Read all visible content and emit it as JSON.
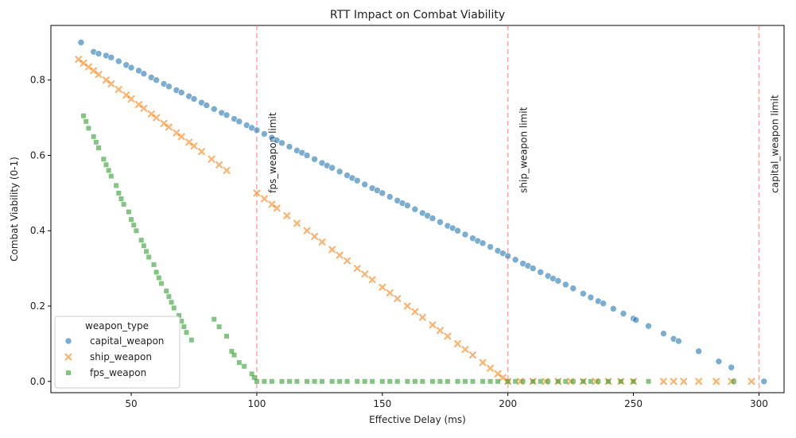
{
  "chart_data": {
    "type": "scatter",
    "title": "RTT Impact on Combat Viability",
    "xlabel": "Effective Delay (ms)",
    "ylabel": "Combat Viability (0-1)",
    "xlim": [
      18,
      310
    ],
    "ylim": [
      -0.03,
      0.945
    ],
    "x_ticks": [
      50,
      100,
      150,
      200,
      250,
      300
    ],
    "y_ticks": [
      0.0,
      0.2,
      0.4,
      0.6,
      0.8
    ],
    "grid": false,
    "legend": {
      "title": "weapon_type",
      "placement": "lower-left"
    },
    "vlines": [
      {
        "x": 100,
        "label": "fps_weapon limit"
      },
      {
        "x": 200,
        "label": "ship_weapon limit"
      },
      {
        "x": 300,
        "label": "capital_weapon limit"
      }
    ],
    "series": [
      {
        "name": "capital_weapon",
        "marker": "circle",
        "color": "#1f77b4",
        "x": [
          30,
          35,
          37,
          40,
          42,
          45,
          48,
          50,
          53,
          55,
          58,
          60,
          63,
          65,
          68,
          70,
          73,
          75,
          78,
          80,
          83,
          86,
          88,
          91,
          93,
          96,
          98,
          100,
          103,
          106,
          108,
          110,
          113,
          116,
          118,
          120,
          123,
          126,
          128,
          130,
          133,
          136,
          138,
          140,
          143,
          146,
          148,
          150,
          153,
          156,
          158,
          160,
          163,
          166,
          168,
          170,
          173,
          176,
          178,
          180,
          183,
          186,
          188,
          190,
          193,
          196,
          198,
          200,
          203,
          206,
          208,
          210,
          213,
          216,
          218,
          220,
          223,
          226,
          230,
          233,
          236,
          238,
          242,
          246,
          250,
          251,
          256,
          262,
          266,
          268,
          276,
          284,
          289,
          302
        ],
        "y": [
          0.9,
          0.875,
          0.87,
          0.865,
          0.86,
          0.85,
          0.84,
          0.833,
          0.825,
          0.817,
          0.807,
          0.8,
          0.79,
          0.783,
          0.773,
          0.767,
          0.757,
          0.75,
          0.74,
          0.733,
          0.723,
          0.713,
          0.707,
          0.697,
          0.69,
          0.68,
          0.673,
          0.667,
          0.657,
          0.647,
          0.64,
          0.633,
          0.623,
          0.613,
          0.607,
          0.6,
          0.59,
          0.58,
          0.573,
          0.567,
          0.557,
          0.547,
          0.54,
          0.533,
          0.523,
          0.513,
          0.507,
          0.5,
          0.49,
          0.48,
          0.473,
          0.467,
          0.457,
          0.447,
          0.44,
          0.433,
          0.423,
          0.413,
          0.407,
          0.4,
          0.39,
          0.38,
          0.373,
          0.367,
          0.357,
          0.347,
          0.34,
          0.333,
          0.323,
          0.313,
          0.307,
          0.3,
          0.29,
          0.28,
          0.273,
          0.267,
          0.257,
          0.247,
          0.233,
          0.223,
          0.213,
          0.207,
          0.193,
          0.18,
          0.167,
          0.163,
          0.147,
          0.127,
          0.113,
          0.107,
          0.08,
          0.053,
          0.037,
          0.0
        ]
      },
      {
        "name": "ship_weapon",
        "marker": "x",
        "color": "#ff7f0e",
        "x": [
          29,
          31,
          33,
          35,
          37,
          40,
          42,
          45,
          48,
          50,
          53,
          55,
          58,
          60,
          63,
          65,
          68,
          70,
          73,
          75,
          78,
          82,
          85,
          88,
          100,
          103,
          106,
          108,
          112,
          116,
          120,
          123,
          126,
          130,
          133,
          136,
          140,
          143,
          146,
          150,
          153,
          156,
          160,
          163,
          166,
          170,
          173,
          176,
          180,
          183,
          186,
          190,
          193,
          196,
          198,
          200,
          205,
          210,
          215,
          220,
          225,
          230,
          235,
          240,
          245,
          250,
          262,
          266,
          270,
          276,
          283,
          289,
          297
        ],
        "y": [
          0.855,
          0.845,
          0.835,
          0.825,
          0.815,
          0.8,
          0.79,
          0.775,
          0.76,
          0.75,
          0.735,
          0.725,
          0.71,
          0.7,
          0.685,
          0.675,
          0.66,
          0.65,
          0.635,
          0.625,
          0.61,
          0.59,
          0.575,
          0.56,
          0.5,
          0.485,
          0.47,
          0.46,
          0.44,
          0.42,
          0.4,
          0.385,
          0.37,
          0.35,
          0.335,
          0.32,
          0.3,
          0.285,
          0.27,
          0.25,
          0.235,
          0.22,
          0.2,
          0.185,
          0.17,
          0.15,
          0.135,
          0.12,
          0.1,
          0.085,
          0.07,
          0.05,
          0.035,
          0.02,
          0.01,
          0.0,
          0.0,
          0.0,
          0.0,
          0.0,
          0.0,
          0.0,
          0.0,
          0.0,
          0.0,
          0.0,
          0.0,
          0.0,
          0.0,
          0.0,
          0.0,
          0.0,
          0.0
        ]
      },
      {
        "name": "fps_weapon",
        "marker": "square",
        "color": "#2ca02c",
        "x": [
          31,
          32,
          33,
          35,
          36,
          37,
          39,
          40,
          41,
          42,
          44,
          45,
          46,
          47,
          49,
          50,
          51,
          52,
          54,
          55,
          56,
          57,
          59,
          60,
          61,
          62,
          64,
          65,
          66,
          67,
          69,
          70,
          71,
          72,
          74,
          83,
          85,
          88,
          90,
          91,
          93,
          95,
          98,
          99,
          100,
          103,
          106,
          110,
          113,
          116,
          120,
          123,
          126,
          130,
          133,
          136,
          140,
          143,
          146,
          150,
          153,
          156,
          160,
          163,
          166,
          170,
          173,
          176,
          180,
          183,
          186,
          190,
          193,
          196,
          200,
          203,
          206,
          210,
          213,
          216,
          220,
          223,
          226,
          230,
          233,
          236,
          240,
          245,
          250,
          256,
          290
        ],
        "y": [
          0.705,
          0.69,
          0.672,
          0.65,
          0.635,
          0.62,
          0.59,
          0.575,
          0.56,
          0.545,
          0.52,
          0.5,
          0.485,
          0.47,
          0.45,
          0.43,
          0.415,
          0.4,
          0.375,
          0.36,
          0.345,
          0.33,
          0.31,
          0.29,
          0.275,
          0.26,
          0.24,
          0.225,
          0.21,
          0.195,
          0.175,
          0.16,
          0.145,
          0.13,
          0.11,
          0.165,
          0.145,
          0.12,
          0.08,
          0.07,
          0.05,
          0.04,
          0.02,
          0.01,
          0.0,
          0.0,
          0.0,
          0.0,
          0.0,
          0.0,
          0.0,
          0.0,
          0.0,
          0.0,
          0.0,
          0.0,
          0.0,
          0.0,
          0.0,
          0.0,
          0.0,
          0.0,
          0.0,
          0.0,
          0.0,
          0.0,
          0.0,
          0.0,
          0.0,
          0.0,
          0.0,
          0.0,
          0.0,
          0.0,
          0.0,
          0.0,
          0.0,
          0.0,
          0.0,
          0.0,
          0.0,
          0.0,
          0.0,
          0.0,
          0.0,
          0.0,
          0.0,
          0.0,
          0.0,
          0.0,
          0.0
        ]
      }
    ]
  }
}
